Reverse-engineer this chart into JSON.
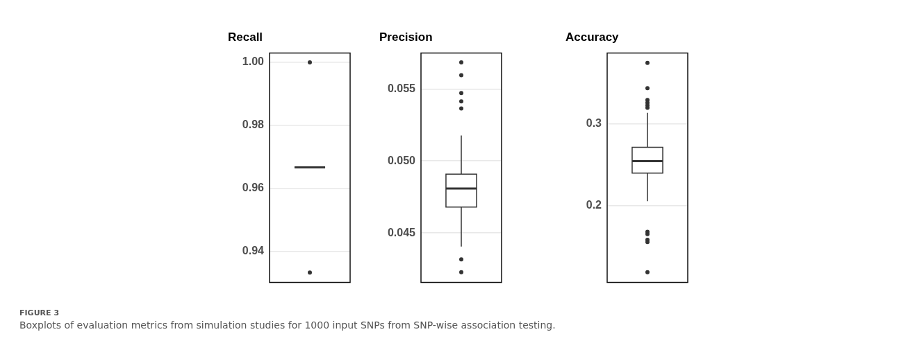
{
  "chart_data": [
    {
      "type": "box",
      "title": "Recall",
      "categories": [
        null
      ],
      "color": "#333333",
      "ylim": [
        0.9302,
        1.003
      ],
      "yticks": [
        {
          "value": 0.94,
          "label": "0.94"
        },
        {
          "value": 0.96,
          "label": "0.96"
        },
        {
          "value": 0.98,
          "label": "0.98"
        },
        {
          "value": 1.0,
          "label": "1.00"
        }
      ],
      "grid": "y",
      "tick_labels": "y",
      "boxes": [
        {
          "low": 0.9667,
          "q1": 0.9667,
          "median": 0.9667,
          "q3": 0.9667,
          "high": 0.9667,
          "outliers": [
            1.0,
            0.9333
          ]
        }
      ]
    },
    {
      "type": "box",
      "title": "Precision",
      "categories": [
        null
      ],
      "color": "#333333",
      "ylim": [
        0.04157,
        0.0575
      ],
      "yticks": [
        {
          "value": 0.045,
          "label": "0.045"
        },
        {
          "value": 0.05,
          "label": "0.050"
        },
        {
          "value": 0.055,
          "label": "0.055"
        }
      ],
      "grid": "y",
      "tick_labels": "y",
      "boxes": [
        {
          "low": 0.04406,
          "q1": 0.0468,
          "median": 0.04809,
          "q3": 0.04909,
          "high": 0.05177,
          "outliers": [
            0.05684,
            0.05595,
            0.05472,
            0.05414,
            0.05364,
            0.04317,
            0.04227
          ]
        }
      ]
    },
    {
      "type": "box",
      "title": "Accuracy",
      "categories": [
        null
      ],
      "color": "#333333",
      "ylim": [
        0.1058,
        0.3873
      ],
      "yticks": [
        0.2,
        0.3
      ],
      "grid": "y",
      "tick_labels": "y",
      "boxes": [
        {
          "low": 0.2055,
          "q1": 0.2399,
          "median": 0.2545,
          "q3": 0.2716,
          "high": 0.3138,
          "outliers": [
            0.3752,
            0.3441,
            0.3295,
            0.3262,
            0.3229,
            0.3201,
            0.1678,
            0.165,
            0.1581,
            0.1553,
            0.1182
          ]
        }
      ]
    },
    {
      "type": "other",
      "annotations": [
        "FIGURE 3",
        "Boxplots of evaluation metrics from simulation studies for 1000 input SNPs from SNP-wise association testing."
      ]
    }
  ]
}
